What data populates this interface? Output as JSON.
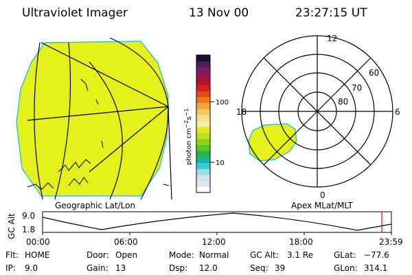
{
  "header": {
    "instrument": "Ultraviolet Imager",
    "date": "13 Nov 00",
    "time": "23:27:15 UT"
  },
  "panels": {
    "left_label": "Geographic Lat/Lon",
    "right_label": "Apex MLat/MLT"
  },
  "polar_plot": {
    "mlt_labels": {
      "top": "12",
      "left": "18",
      "right": "6",
      "bottom": "0"
    },
    "lat_labels": [
      "60",
      "70",
      "80"
    ]
  },
  "colorbar": {
    "unit_label": "photon cm",
    "unit_exp1": "−2",
    "unit_mid": "s",
    "unit_exp2": "−1",
    "ticks": [
      "100",
      "10"
    ],
    "colors": [
      "#ffffff",
      "#e6e6ea",
      "#cfe3ec",
      "#9edce6",
      "#33ccd9",
      "#19b3a3",
      "#2bb04a",
      "#55c81e",
      "#8ed414",
      "#bfe01a",
      "#e6ec18",
      "#f5f0a0",
      "#f7e08a",
      "#f5c86a",
      "#f5a53c",
      "#ef7a1e",
      "#e44a1a",
      "#d4201a",
      "#b81428",
      "#9a1848",
      "#7c1a6a",
      "#4a1a5a",
      "#1a1030"
    ]
  },
  "altitude_plot": {
    "ylabel": "GC Alt",
    "ytick_top": "9.0",
    "ytick_bottom": "1.8",
    "xticks": [
      "00:00",
      "06:00",
      "12:00",
      "18:00",
      "23:59"
    ],
    "current_time_marker_color": "#ff0000"
  },
  "footer": {
    "flt_label": "Flt:",
    "flt_value": "HOME",
    "ip_label": "IP:",
    "ip_value": "9.0",
    "door_label": "Door:",
    "door_value": "Open",
    "gain_label": "Gain:",
    "gain_value": "13",
    "mode_label": "Mode:",
    "mode_value": "Normal",
    "dsp_label": "Dsp:",
    "dsp_value": "12.0",
    "gcalt_label": "GC Alt:",
    "gcalt_value": "3.1 Re",
    "seq_label": "Seq:",
    "seq_value": "39",
    "glat_label": "GLat:",
    "glat_value": "−77.6",
    "glon_label": "GLon:",
    "glon_value": "314.1"
  },
  "colors": {
    "emission": "#e6f01a",
    "emission_edge": "#33c4d4",
    "marker": "#ff0000"
  }
}
